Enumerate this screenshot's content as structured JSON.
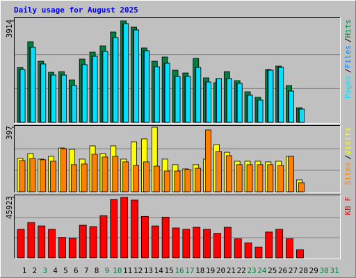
{
  "chart_data": [
    {
      "type": "bar",
      "title": "Daily usage for August 2025",
      "title_color": "#0000ff",
      "ylim": [
        0,
        3914
      ],
      "yticks": [
        3914
      ],
      "legend_separator": "/",
      "series": [
        {
          "name": "Pages",
          "color": "#00e0ff",
          "values": [
            2037,
            2894,
            2251,
            1822,
            1822,
            1420,
            2224,
            2546,
            2734,
            3270,
            3806,
            3564,
            2760,
            2144,
            2278,
            1769,
            1769,
            2117,
            1554,
            1688,
            1688,
            1501,
            1045,
            858,
            2010,
            2117,
            1206,
            509,
            null,
            null,
            null
          ]
        },
        {
          "name": "Files",
          "color": "#0080ff",
          "values": [
            2037,
            2894,
            2251,
            1822,
            1822,
            1420,
            2224,
            2546,
            2734,
            3270,
            3806,
            3564,
            2760,
            2144,
            2278,
            1769,
            1769,
            2117,
            1554,
            1688,
            1688,
            1501,
            1045,
            858,
            2010,
            2117,
            1206,
            509,
            null,
            null,
            null
          ]
        },
        {
          "name": "Hits",
          "color": "#008040",
          "values": [
            2117,
            3109,
            2358,
            1930,
            1956,
            1635,
            2439,
            2707,
            2948,
            3484,
            3914,
            3672,
            2868,
            2358,
            2519,
            2010,
            1903,
            2466,
            1715,
            1528,
            1956,
            1608,
            1179,
            965,
            2037,
            2171,
            1420,
            563,
            null,
            null,
            null
          ]
        }
      ]
    },
    {
      "type": "bar",
      "ylim": [
        0,
        397
      ],
      "yticks": [
        397
      ],
      "legend_separator": "/",
      "series": [
        {
          "name": "Sites",
          "color": "#ff8000",
          "values": [
            192,
            205,
            197,
            188,
            265,
            167,
            171,
            231,
            214,
            218,
            184,
            162,
            184,
            158,
            128,
            128,
            137,
            145,
            380,
            248,
            222,
            167,
            167,
            167,
            167,
            162,
            218,
            56,
            null,
            null,
            null
          ]
        },
        {
          "name": "Visits",
          "color": "#ffff00",
          "values": [
            205,
            235,
            201,
            218,
            269,
            261,
            201,
            282,
            235,
            282,
            201,
            307,
            325,
            397,
            201,
            167,
            141,
            167,
            201,
            290,
            243,
            188,
            188,
            188,
            184,
            188,
            218,
            73,
            null,
            null,
            null
          ]
        }
      ]
    },
    {
      "type": "bar",
      "ylim": [
        0,
        45923
      ],
      "yticks": [
        45923
      ],
      "categories": [
        "1",
        "2",
        "3",
        "4",
        "5",
        "6",
        "7",
        "8",
        "9",
        "10",
        "11",
        "12",
        "13",
        "14",
        "15",
        "16",
        "17",
        "18",
        "19",
        "20",
        "21",
        "22",
        "23",
        "24",
        "25",
        "26",
        "27",
        "28",
        "29",
        "30",
        "31"
      ],
      "category_colors": [
        "#000000",
        "#000000",
        "#008040",
        "#000000",
        "#000000",
        "#000000",
        "#000000",
        "#000000",
        "#008040",
        "#008040",
        "#000000",
        "#000000",
        "#000000",
        "#000000",
        "#000000",
        "#008040",
        "#008040",
        "#000000",
        "#000000",
        "#000000",
        "#000000",
        "#000000",
        "#008040",
        "#008040",
        "#000000",
        "#000000",
        "#000000",
        "#000000",
        "#000000",
        "#008040",
        "#008040"
      ],
      "series": [
        {
          "name": "KB F",
          "color": "#ff0000",
          "values": [
            21670,
            26830,
            24250,
            21670,
            15480,
            14960,
            24770,
            23740,
            32000,
            44375,
            45923,
            43860,
            31480,
            24250,
            30960,
            22700,
            21670,
            23220,
            21670,
            18580,
            23220,
            14450,
            11350,
            8260,
            19610,
            21670,
            14450,
            6190,
            null,
            null,
            null
          ]
        }
      ]
    }
  ]
}
